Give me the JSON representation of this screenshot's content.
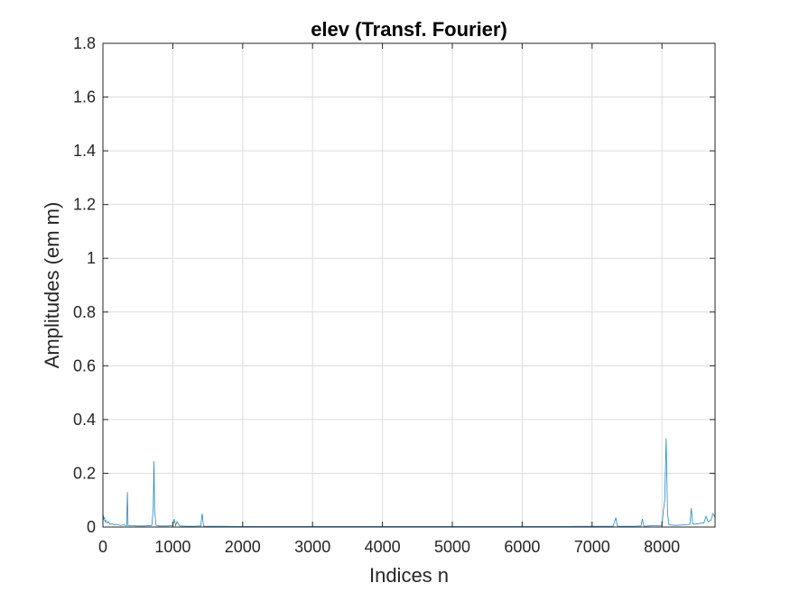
{
  "chart_data": {
    "type": "line",
    "title": "elev (Transf. Fourier)",
    "xlabel": "Indices n",
    "ylabel": "Amplitudes (em m)",
    "xlim": [
      0,
      8760
    ],
    "ylim": [
      0,
      1.8
    ],
    "grid": true,
    "x_ticks": [
      0,
      1000,
      2000,
      3000,
      4000,
      5000,
      6000,
      7000,
      8000
    ],
    "x_tick_labels": [
      "0",
      "1000",
      "2000",
      "3000",
      "4000",
      "5000",
      "6000",
      "7000",
      "8000"
    ],
    "y_ticks": [
      0,
      0.2,
      0.4,
      0.6,
      0.8,
      1.0,
      1.2,
      1.4,
      1.6,
      1.8
    ],
    "y_tick_labels": [
      "0",
      "0.2",
      "0.4",
      "0.6",
      "0.8",
      "1",
      "1.2",
      "1.4",
      "1.6",
      "1.8"
    ],
    "line_color": "#0072BD",
    "series": [
      {
        "x": [
          0,
          5,
          10,
          20,
          30,
          40,
          60,
          80,
          100,
          130,
          160,
          200,
          250,
          300,
          340,
          350,
          360,
          400,
          500,
          600,
          700,
          720,
          730,
          740,
          760,
          800,
          900,
          1000,
          1020,
          1040,
          1060,
          1100,
          1200,
          1300,
          1400,
          1420,
          1440,
          1460,
          1500,
          1700,
          2000,
          2500,
          3000,
          3500,
          4000,
          4380,
          5000,
          5500,
          6000,
          6500,
          7000,
          7300,
          7340,
          7360,
          7380,
          7400,
          7600,
          7700,
          7720,
          7740,
          7760,
          7800,
          7900,
          8000,
          8020,
          8040,
          8060,
          8080,
          8100,
          8200,
          8300,
          8400,
          8420,
          8440,
          8460,
          8500,
          8600,
          8630,
          8660,
          8700,
          8730,
          8750,
          8760
        ],
        "y": [
          0.04,
          0.045,
          0.03,
          0.035,
          0.02,
          0.025,
          0.015,
          0.02,
          0.01,
          0.012,
          0.008,
          0.01,
          0.006,
          0.008,
          0.005,
          0.13,
          0.006,
          0.005,
          0.004,
          0.004,
          0.006,
          0.07,
          0.245,
          0.06,
          0.006,
          0.004,
          0.004,
          0.005,
          0.03,
          0.005,
          0.02,
          0.004,
          0.003,
          0.003,
          0.004,
          0.05,
          0.004,
          0.003,
          0.003,
          0.003,
          0.002,
          0.002,
          0.002,
          0.002,
          0.002,
          0.002,
          0.002,
          0.002,
          0.002,
          0.002,
          0.003,
          0.003,
          0.035,
          0.004,
          0.003,
          0.003,
          0.003,
          0.004,
          0.03,
          0.004,
          0.003,
          0.004,
          0.005,
          0.006,
          0.06,
          0.1,
          0.33,
          0.05,
          0.008,
          0.006,
          0.008,
          0.01,
          0.07,
          0.012,
          0.01,
          0.012,
          0.015,
          0.04,
          0.02,
          0.025,
          0.05,
          0.04,
          0.045
        ]
      }
    ]
  }
}
